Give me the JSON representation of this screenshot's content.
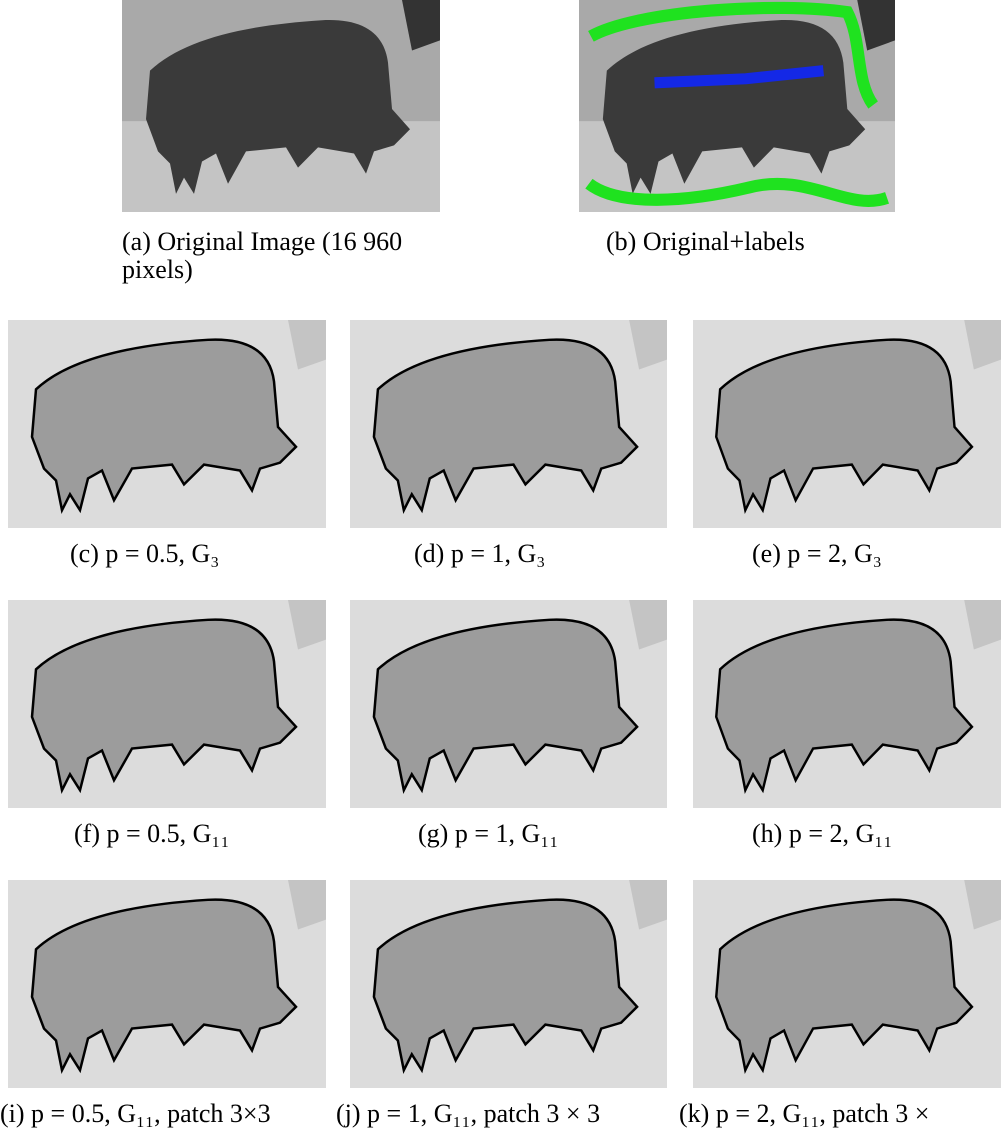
{
  "figure": {
    "top": [
      {
        "caption": "(a) Original Image (16 960 pixels)"
      },
      {
        "caption": "(b) Original+labels"
      }
    ],
    "panels": [
      {
        "caption": "(c) p = 0.5, G₃"
      },
      {
        "caption": "(d) p = 1, G₃"
      },
      {
        "caption": "(e) p = 2, G₃"
      },
      {
        "caption": "(f) p = 0.5, G₁₁"
      },
      {
        "caption": "(g) p = 1, G₁₁"
      },
      {
        "caption": "(h) p = 2, G₁₁"
      },
      {
        "caption": "(i) p = 0.5, G₁₁, patch 3×3"
      },
      {
        "caption": "(j) p = 1, G₁₁, patch 3 × 3"
      },
      {
        "caption": "(k) p = 2, G₁₁, patch 3 ×"
      }
    ]
  }
}
